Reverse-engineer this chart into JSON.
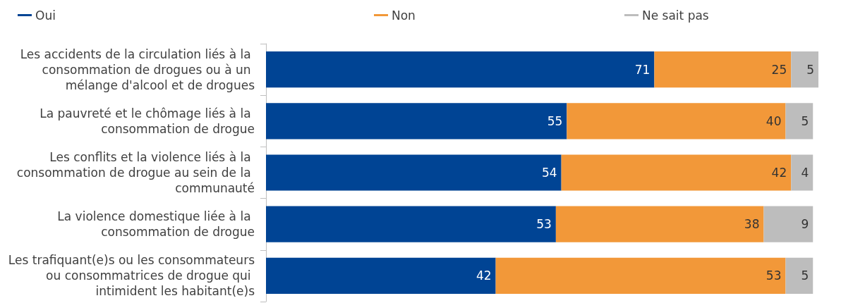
{
  "chart_data": {
    "type": "bar",
    "orientation": "horizontal",
    "stacked": true,
    "legend": "top",
    "data_labels": true,
    "categories": [
      "Les accidents de la circulation liés à la consommation de drogues ou à un mélange d'alcool et de drogues",
      "La pauvreté et le chômage liés à la consommation de drogue",
      "Les conflits et la violence liés à la consommation de drogue au sein de la communauté",
      "La violence domestique liée à la consommation de drogue",
      "Les trafiquant(e)s ou les consommateurs ou consommatrices de drogue qui intimident les habitant(e)s"
    ],
    "series": [
      {
        "name": "Oui",
        "color": "#004494",
        "values": [
          71,
          55,
          54,
          53,
          42
        ]
      },
      {
        "name": "Non",
        "color": "#f29839",
        "values": [
          25,
          40,
          42,
          38,
          53
        ]
      },
      {
        "name": "Ne sait pas",
        "color": "#bdbdbd",
        "values": [
          5,
          5,
          4,
          9,
          5
        ]
      }
    ]
  }
}
